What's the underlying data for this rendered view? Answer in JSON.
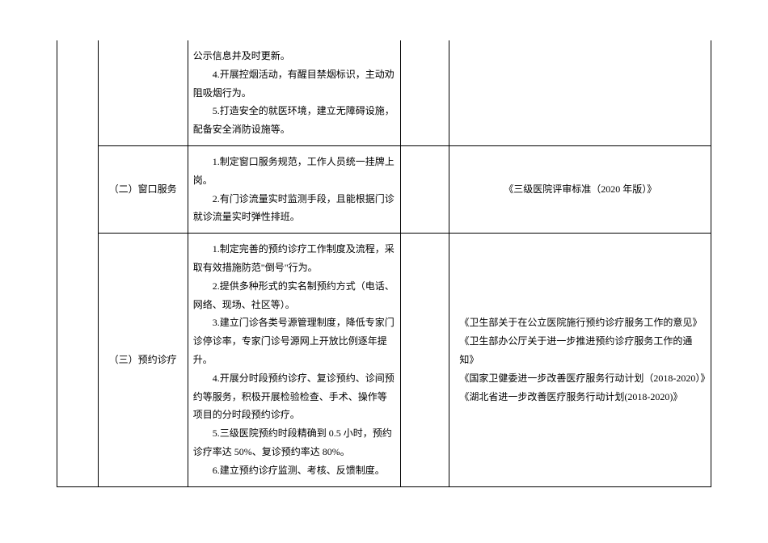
{
  "table": {
    "border_color": "#000000",
    "background_color": "#ffffff",
    "text_color": "#000000",
    "font_size": 12,
    "font_family": "SimSun",
    "columns": {
      "col1_width": 50,
      "col2_width": 110,
      "col3_width": 260,
      "col4_width": 60,
      "col5_width": 320
    },
    "rows": [
      {
        "col1": "",
        "col2": "",
        "col3_lines": [
          "公示信息并及时更新。",
          "　　4.开展控烟活动，有醒目禁烟标识，主动劝阻吸烟行为。",
          "　　5.打造安全的就医环境，建立无障碍设施，配备安全消防设施等。"
        ],
        "col4": "",
        "col5": ""
      },
      {
        "col1": "",
        "col2": "（二）窗口服务",
        "col3_lines": [
          "　　1.制定窗口服务规范，工作人员统一挂牌上岗。",
          "　　2.有门诊流量实时监测手段，且能根据门诊就诊流量实时弹性排班。"
        ],
        "col4": "",
        "col5": "《三级医院评审标准（2020 年版）》",
        "col5_center": true
      },
      {
        "col1": "",
        "col2": "（三）预约诊疗",
        "col3_lines": [
          "　　1.制定完善的预约诊疗工作制度及流程，采取有效措施防范\"倒号\"行为。",
          "　　2.提供多种形式的实名制预约方式（电话、网络、现场、社区等）。",
          "　　3.建立门诊各类号源管理制度，降低专家门诊停诊率，专家门诊号源网上开放比例逐年提升。",
          "　　4.开展分时段预约诊疗、复诊预约、诊间预约等服务，积极开展检验检查、手术、操作等项目的分时段预约诊疗。",
          "　　5.三级医院预约时段精确到 0.5 小时，预约诊疗率达 50%、复诊预约率达 80%。",
          "　　6.建立预约诊疗监测、考核、反馈制度。"
        ],
        "col4": "",
        "col5_lines": [
          "《卫生部关于在公立医院施行预约诊疗服务工作的意见》",
          "《卫生部办公厅关于进一步推进预约诊疗服务工作的通知》",
          "《国家卫健委进一步改善医疗服务行动计划（2018-2020）》",
          "《湖北省进一步改善医疗服务行动计划(2018-2020)》"
        ]
      }
    ]
  }
}
